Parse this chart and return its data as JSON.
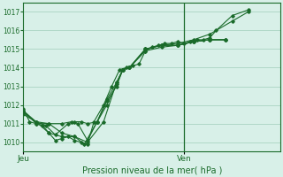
{
  "xlabel": "Pression niveau de la mer( hPa )",
  "bg_color": "#d8f0e8",
  "grid_color": "#b0d8c8",
  "line_color": "#1a6b2a",
  "tick_color": "#1a6b2a",
  "border_color": "#1a6b2a",
  "ymin": 1009.5,
  "ymax": 1017.5,
  "yticks": [
    1010,
    1011,
    1012,
    1013,
    1014,
    1015,
    1016,
    1017
  ],
  "xmin": 0.0,
  "xmax": 1.6,
  "x_day_labels": [
    {
      "label": "Jeu",
      "x": 0.0
    },
    {
      "label": "Ven",
      "x": 1.0
    }
  ],
  "vline_x": 1.0,
  "series": [
    [
      0.0,
      1011.8,
      0.04,
      1011.1,
      0.08,
      1011.0,
      0.12,
      1010.9,
      0.16,
      1010.5,
      0.2,
      1010.1,
      0.24,
      1010.2,
      0.28,
      1010.3,
      0.32,
      1010.1,
      0.36,
      1010.0,
      0.4,
      1009.9,
      0.44,
      1011.1,
      0.5,
      1012.0,
      0.55,
      1013.0,
      0.6,
      1013.9,
      0.64,
      1014.0,
      0.68,
      1014.1,
      0.72,
      1014.2,
      0.76,
      1014.9,
      0.8,
      1015.1,
      0.84,
      1015.2,
      0.88,
      1015.3,
      0.92,
      1015.3,
      0.96,
      1015.4,
      1.0,
      1015.3,
      1.04,
      1015.4,
      1.08,
      1015.5,
      1.12,
      1015.5,
      1.16,
      1015.6,
      1.2,
      1016.0,
      1.3,
      1016.8,
      1.4,
      1017.1
    ],
    [
      0.0,
      1011.5,
      0.08,
      1011.1,
      0.16,
      1010.5,
      0.24,
      1010.3,
      0.32,
      1010.3,
      0.4,
      1010.0,
      0.5,
      1011.1,
      0.58,
      1013.2,
      0.62,
      1013.9,
      0.66,
      1014.0,
      0.76,
      1015.0,
      0.86,
      1015.2,
      0.96,
      1015.3,
      1.06,
      1015.5,
      1.16,
      1015.8,
      1.3,
      1016.5,
      1.4,
      1017.0
    ],
    [
      0.0,
      1011.6,
      0.08,
      1011.1,
      0.14,
      1010.9,
      0.2,
      1010.4,
      0.28,
      1011.0,
      0.32,
      1011.1,
      0.36,
      1011.1,
      0.4,
      1011.0,
      0.46,
      1011.1,
      0.52,
      1012.2,
      0.58,
      1013.0,
      0.62,
      1013.9,
      0.66,
      1014.0,
      0.76,
      1014.9,
      0.86,
      1015.1,
      0.96,
      1015.2,
      1.06,
      1015.4,
      1.16,
      1015.5,
      1.26,
      1015.5
    ],
    [
      0.0,
      1011.7,
      0.08,
      1011.1,
      0.16,
      1011.0,
      0.24,
      1010.5,
      0.32,
      1010.3,
      0.38,
      1009.9,
      0.46,
      1011.1,
      0.52,
      1012.0,
      0.58,
      1013.1,
      0.62,
      1013.9,
      0.66,
      1014.0,
      0.76,
      1015.0,
      0.86,
      1015.2,
      0.96,
      1015.2,
      1.06,
      1015.4,
      1.16,
      1015.5,
      1.26,
      1015.5
    ],
    [
      0.0,
      1011.7,
      0.08,
      1011.0,
      0.16,
      1011.0,
      0.24,
      1011.0,
      0.3,
      1011.1,
      0.34,
      1011.0,
      0.4,
      1010.1,
      0.46,
      1011.1,
      0.52,
      1012.3,
      0.58,
      1013.2,
      0.62,
      1013.9,
      0.66,
      1014.0,
      0.76,
      1015.0,
      0.86,
      1015.2,
      0.96,
      1015.2,
      1.06,
      1015.4,
      1.16,
      1015.5,
      1.26,
      1015.5
    ]
  ]
}
